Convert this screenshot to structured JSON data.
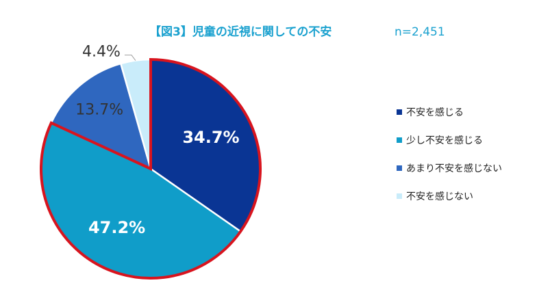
{
  "chart_data": {
    "type": "pie",
    "title": "【図3】児童の近視に関しての不安",
    "sample_size": "n=2,451",
    "slices": [
      {
        "label": "不安を感じる",
        "value": 34.7,
        "display": "34.7%",
        "color": "#0a3594",
        "highlight": true
      },
      {
        "label": "少し不安を感じる",
        "value": 47.2,
        "display": "47.2%",
        "color": "#109dc9",
        "highlight": true
      },
      {
        "label": "あまり不安を感じない",
        "value": 13.7,
        "display": "13.7%",
        "color": "#2f67bf",
        "highlight": false
      },
      {
        "label": "不安を感じない",
        "value": 4.4,
        "display": "4.4%",
        "color": "#c9ecfa",
        "highlight": false
      }
    ],
    "highlight_color": "#d8141e",
    "legend_position": "right",
    "start_angle": "top",
    "direction": "clockwise"
  }
}
